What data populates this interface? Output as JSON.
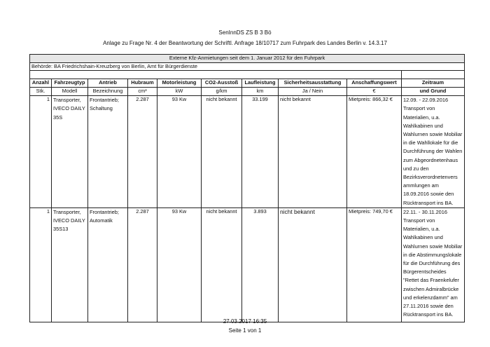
{
  "header": {
    "line1": "SenInnDS ZS B 3 Bö",
    "line2": "Anlage zu Frage Nr. 4 der Beantwortung der Schriftl. Anfrage 18/10717 zum Fuhrpark des Landes Berlin v. 14.3.17"
  },
  "table": {
    "title": "Externe Kfz-Anmietungen seit dem 1. Januar 2012 für den Fuhrpark",
    "authority": "Behörde:  BA Friedrichshain-Kreuzberg von Berlin, Amt für Bürgerdienste",
    "columns": [
      "Anzahl",
      "Fahrzeugtyp",
      "Antrieb",
      "Hubraum",
      "Motorleistung",
      "CO2-Ausstoß",
      "Laufleistung",
      "Sicherheitsausstattung",
      "Anschaffungswert",
      "Zeitraum"
    ],
    "units": [
      "Stk.",
      "Modell",
      "Bezeichnung",
      "cm³",
      "kW",
      "g/km",
      "km",
      "Ja / Nein",
      "€",
      "und Grund"
    ],
    "rows": [
      {
        "count": "1",
        "type": "Transporter, IVECO DAILY 35S",
        "drive": "Frontantrieb; Schaltung",
        "displacement": "2.287",
        "power": "93 Kw",
        "co2": "nicht bekannt",
        "mileage": "33.199",
        "safety": "nicht bekannt",
        "value": "Mietpreis: 866,32 €",
        "period": "12.09. - 22.09.2016 Transport von Materialien, u.a. Wahlkabinen und Wahlurnen sowie Mobiliar in die Wahllokale für die Durchführung der Wahlen zum Abgeordnetenhaus und zu den Bezirksverordnetenvers ammlungen am 18.09.2016 sowie den Rücktransport ins BA."
      },
      {
        "count": "1",
        "type": "Transporter, IVECO DAILY 35S13",
        "drive": "Frontantrieb; Automatik",
        "displacement": "2.287",
        "power": "93 Kw",
        "co2": "nicht bekannt",
        "mileage": "3.893",
        "safety": "nicht bekannt",
        "value": "Mietpreis: 749,70 €",
        "period": "22.11. - 30.11.2016 Transport von Materialien, u.a. Wahlkabinen und Wahlurnen sowie Mobiliar in die Abstimmungslokale für die Durchführung des Bürgerentscheides \"Rettet das Fraenkelufer zwischen Admiralbrücke und erkelenzdamm\" am 27.11.2016 sowie den Rücktransport ins BA."
      }
    ]
  },
  "footer": {
    "date": "27.03.2017 16:35",
    "page": "Seite 1 von 1"
  }
}
